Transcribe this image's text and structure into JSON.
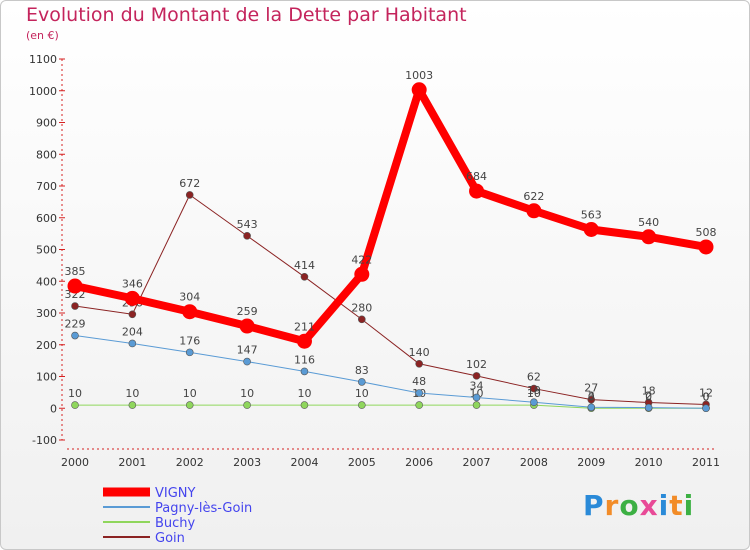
{
  "header": {
    "title": "Evolution du Montant de la Dette par Habitant",
    "subtitle": "(en €)"
  },
  "logo": {
    "text": "Proxiti",
    "letter_colors": [
      "#2a8ad8",
      "#f28c28",
      "#3cb043",
      "#e84a97",
      "#2a8ad8",
      "#f28c28",
      "#3cb043"
    ]
  },
  "chart_data": {
    "type": "line",
    "x": [
      "2000",
      "2001",
      "2002",
      "2003",
      "2004",
      "2005",
      "2006",
      "2007",
      "2008",
      "2009",
      "2010",
      "2011"
    ],
    "ylim": [
      -100,
      1100
    ],
    "yticks": [
      -100,
      0,
      100,
      200,
      300,
      400,
      500,
      600,
      700,
      800,
      900,
      1000,
      1100
    ],
    "grid": false,
    "legend_position": "bottom-left",
    "series": [
      {
        "name": "Goin",
        "color": "#8b2323",
        "values": [
          322,
          296,
          672,
          543,
          414,
          280,
          140,
          102,
          62,
          27,
          18,
          12
        ],
        "labels": [
          "322",
          "296",
          "672",
          "543",
          "414",
          "280",
          "140",
          "102",
          "62",
          "27",
          "18",
          "12"
        ]
      },
      {
        "name": "Buchy",
        "color": "#8fd65c",
        "values": [
          10,
          10,
          10,
          10,
          10,
          10,
          10,
          10,
          10,
          0,
          0,
          0
        ],
        "labels": [
          "10",
          "10",
          "10",
          "10",
          "10",
          "10",
          "10",
          "10",
          "10",
          "0",
          "0",
          "0"
        ]
      },
      {
        "name": "Pagny-lès-Goin",
        "color": "#5a9bd5",
        "values": [
          229,
          204,
          176,
          147,
          116,
          83,
          48,
          34,
          19,
          3,
          2,
          0
        ],
        "labels": [
          "229",
          "204",
          "176",
          "147",
          "116",
          "83",
          "48",
          "34",
          "19",
          "3",
          "2",
          "0"
        ]
      },
      {
        "name": "VIGNY",
        "color": "#ff0000",
        "values": [
          385,
          346,
          304,
          259,
          211,
          422,
          1003,
          684,
          622,
          563,
          540,
          508
        ],
        "labels": [
          "385",
          "346",
          "304",
          "259",
          "211",
          "422",
          "1003",
          "684",
          "622",
          "563",
          "540",
          "508"
        ]
      }
    ],
    "legend": [
      "VIGNY",
      "Pagny-lès-Goin",
      "Buchy",
      "Goin"
    ]
  }
}
